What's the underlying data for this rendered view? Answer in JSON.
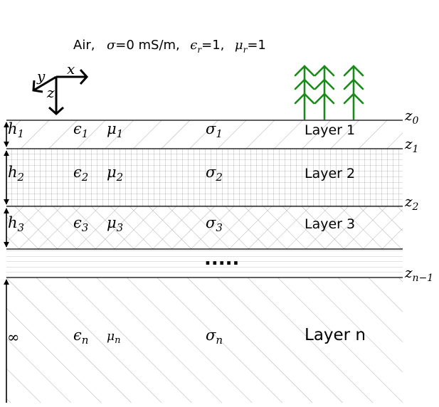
{
  "header": {
    "air": "Air,",
    "sigma_sym": "σ",
    "sigma_val": "=0 mS/m,",
    "eps_sym": "ϵ",
    "eps_sub": "r",
    "eps_val": "=1,",
    "mu_sym": "μ",
    "mu_sub": "r",
    "mu_val": "=1"
  },
  "axes": {
    "x": "x",
    "y": "y",
    "z": "z"
  },
  "layers": [
    {
      "h": "h",
      "h_sub": "1",
      "eps": "ϵ",
      "eps_sub": "1",
      "mu": "μ",
      "mu_sub": "1",
      "sigma": "σ",
      "sigma_sub": "1",
      "name": "Layer 1"
    },
    {
      "h": "h",
      "h_sub": "2",
      "eps": "ϵ",
      "eps_sub": "2",
      "mu": "μ",
      "mu_sub": "2",
      "sigma": "σ",
      "sigma_sub": "2",
      "name": "Layer 2"
    },
    {
      "h": "h",
      "h_sub": "3",
      "eps": "ϵ",
      "eps_sub": "3",
      "mu": "μ",
      "mu_sub": "3",
      "sigma": "σ",
      "sigma_sub": "3",
      "name": "Layer 3"
    },
    {
      "h": "∞",
      "h_sub": "",
      "eps": "ϵ",
      "eps_sub": "n",
      "mu": "μ",
      "mu_sub": "n",
      "sigma": "σ",
      "sigma_sub": "n",
      "name": "Layer n"
    }
  ],
  "ellipsis": ".....",
  "z_labels": [
    {
      "base": "z",
      "sub": "0"
    },
    {
      "base": "z",
      "sub": "1"
    },
    {
      "base": "z",
      "sub": "2"
    },
    {
      "base": "z",
      "sub": "n−1"
    }
  ],
  "colors": {
    "ink": "#000000",
    "hatch": "#888888",
    "tree": "#1a8a1a"
  }
}
